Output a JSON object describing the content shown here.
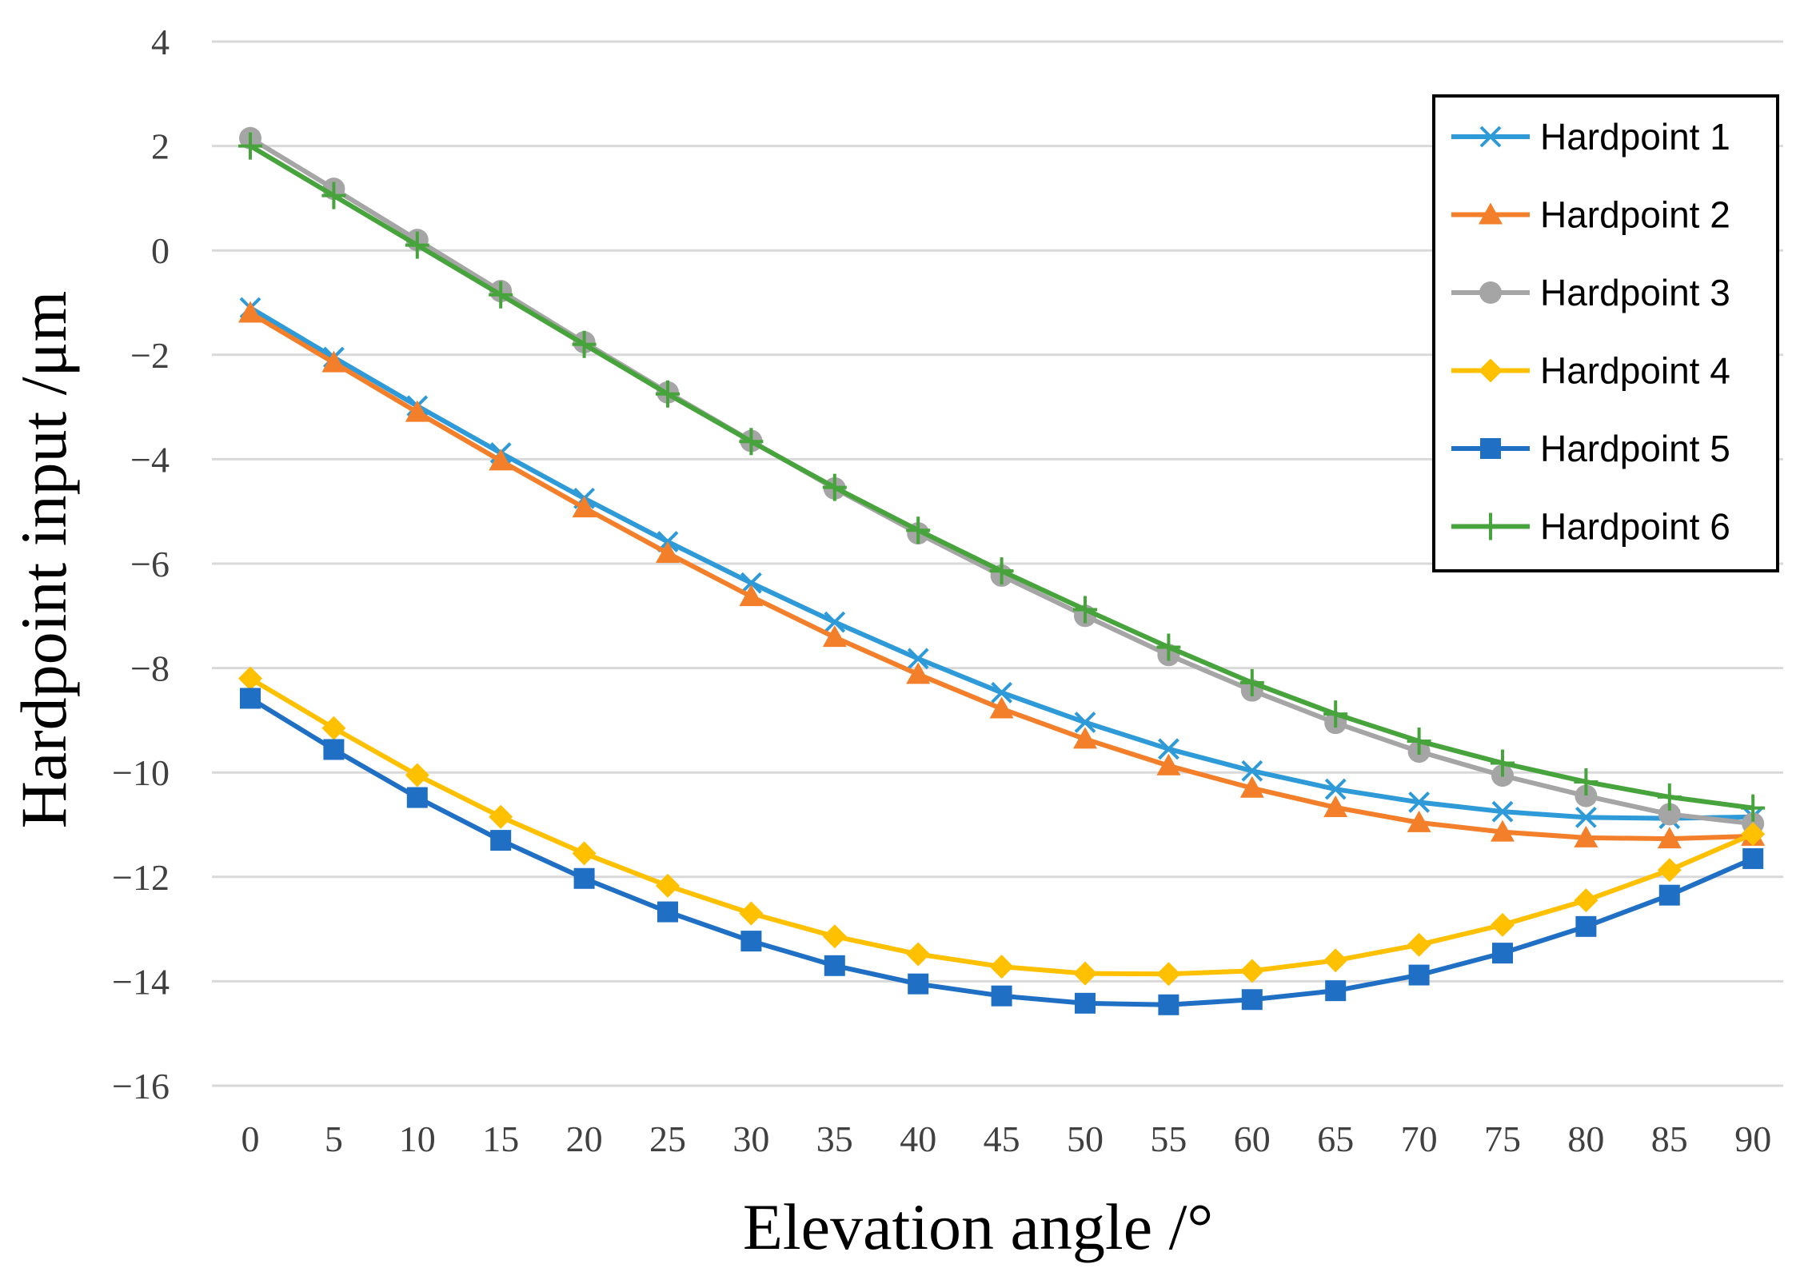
{
  "chart_data": {
    "type": "line",
    "title": "",
    "xlabel": "Elevation angle /°",
    "ylabel": "Hardpoint input /μm",
    "ylim": [
      -16,
      4
    ],
    "ystep": 2,
    "y_tick_labels": [
      "4",
      "2",
      "0",
      "−2",
      "−4",
      "−6",
      "−8",
      "−10",
      "−12",
      "−14",
      "−16"
    ],
    "x": [
      0,
      5,
      10,
      15,
      20,
      25,
      30,
      35,
      40,
      45,
      50,
      55,
      60,
      65,
      70,
      75,
      80,
      85,
      90
    ],
    "x_tick_labels": [
      "0",
      "5",
      "10",
      "15",
      "20",
      "25",
      "30",
      "35",
      "40",
      "45",
      "50",
      "55",
      "60",
      "65",
      "70",
      "75",
      "80",
      "85",
      "90"
    ],
    "grid": true,
    "legend_position": "top-right",
    "series": [
      {
        "name": "Hardpoint 1",
        "color": "#2e9ad8",
        "marker": "x",
        "values": [
          -1.1,
          -2.05,
          -2.98,
          -3.88,
          -4.75,
          -5.58,
          -6.37,
          -7.12,
          -7.82,
          -8.47,
          -9.04,
          -9.55,
          -9.97,
          -10.32,
          -10.57,
          -10.75,
          -10.86,
          -10.88,
          -10.85
        ]
      },
      {
        "name": "Hardpoint 2",
        "color": "#f37f2a",
        "marker": "triangle",
        "values": [
          -1.2,
          -2.15,
          -3.1,
          -4.03,
          -4.93,
          -5.8,
          -6.63,
          -7.41,
          -8.12,
          -8.78,
          -9.36,
          -9.87,
          -10.3,
          -10.67,
          -10.96,
          -11.14,
          -11.25,
          -11.27,
          -11.22
        ]
      },
      {
        "name": "Hardpoint 3",
        "color": "#a5a5a5",
        "marker": "circle",
        "values": [
          2.15,
          1.18,
          0.2,
          -0.78,
          -1.76,
          -2.72,
          -3.65,
          -4.56,
          -5.42,
          -6.23,
          -7.0,
          -7.75,
          -8.43,
          -9.05,
          -9.6,
          -10.06,
          -10.45,
          -10.8,
          -10.98
        ]
      },
      {
        "name": "Hardpoint 4",
        "color": "#ffc000",
        "marker": "diamond",
        "values": [
          -8.2,
          -9.15,
          -10.05,
          -10.85,
          -11.55,
          -12.17,
          -12.7,
          -13.14,
          -13.48,
          -13.72,
          -13.85,
          -13.86,
          -13.8,
          -13.6,
          -13.3,
          -12.92,
          -12.45,
          -11.87,
          -11.18
        ]
      },
      {
        "name": "Hardpoint 5",
        "color": "#1f6fc5",
        "marker": "square",
        "values": [
          -8.58,
          -9.56,
          -10.48,
          -11.3,
          -12.03,
          -12.67,
          -13.23,
          -13.7,
          -14.05,
          -14.28,
          -14.42,
          -14.45,
          -14.35,
          -14.18,
          -13.88,
          -13.46,
          -12.95,
          -12.35,
          -11.65
        ]
      },
      {
        "name": "Hardpoint 6",
        "color": "#47a43c",
        "marker": "plus",
        "values": [
          2.0,
          1.05,
          0.1,
          -0.85,
          -1.8,
          -2.75,
          -3.66,
          -4.54,
          -5.36,
          -6.14,
          -6.88,
          -7.6,
          -8.28,
          -8.88,
          -9.4,
          -9.82,
          -10.18,
          -10.47,
          -10.68
        ]
      }
    ]
  }
}
